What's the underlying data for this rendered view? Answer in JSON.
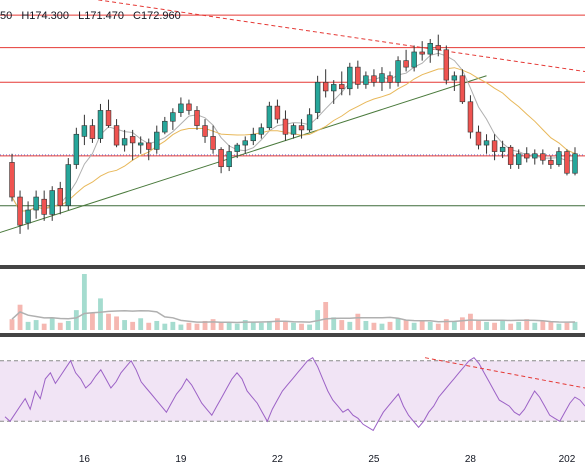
{
  "header": {
    "open_fragment": "50",
    "high": "H174.300",
    "low": "L171.470",
    "close": "C172.960"
  },
  "colors": {
    "up": "#26a69a",
    "down": "#ef5350",
    "horizontal_level": "#e53935",
    "trend_up": "#4a7a3c",
    "trend_down": "#e53935",
    "ma_fast": "#b0b0b0",
    "ma_slow": "#e8b85a",
    "rsi_line": "#9c62c6",
    "rsi_band": "#f1e4f5",
    "separator": "#444444",
    "volume_ma": "#b0b0b0"
  },
  "chart_data": [
    {
      "type": "candlestick",
      "x_labels": [
        {
          "i": 9,
          "label": "16"
        },
        {
          "i": 21,
          "label": "19"
        },
        {
          "i": 33,
          "label": "22"
        },
        {
          "i": 45,
          "label": "25"
        },
        {
          "i": 57,
          "label": "28"
        },
        {
          "i": 69,
          "label": "202"
        }
      ],
      "ylim": [
        165.6,
        177.7
      ],
      "horizontal_levels": [
        177.0,
        175.5,
        173.9,
        170.5,
        168.2
      ],
      "trend_lines": [
        {
          "role": "support",
          "from": [
            -2,
            166.9
          ],
          "to": [
            59,
            174.2
          ]
        },
        {
          "role": "resistance",
          "from": [
            9,
            177.8
          ],
          "to": [
            73,
            174.3
          ]
        }
      ],
      "candles": [
        [
          170.2,
          170.6,
          168.4,
          168.6
        ],
        [
          168.6,
          168.9,
          166.9,
          167.3
        ],
        [
          167.4,
          168.4,
          167.1,
          168.0
        ],
        [
          168.0,
          168.9,
          167.6,
          168.6
        ],
        [
          168.5,
          168.9,
          167.5,
          167.8
        ],
        [
          167.8,
          169.1,
          167.5,
          168.9
        ],
        [
          169.0,
          169.3,
          167.8,
          168.2
        ],
        [
          168.2,
          170.4,
          168.0,
          170.1
        ],
        [
          170.1,
          171.8,
          169.9,
          171.5
        ],
        [
          171.4,
          172.4,
          171.0,
          171.9
        ],
        [
          171.9,
          172.2,
          171.1,
          171.3
        ],
        [
          171.3,
          172.9,
          171.1,
          172.6
        ],
        [
          172.6,
          173.1,
          171.8,
          171.9
        ],
        [
          171.9,
          172.2,
          170.9,
          171.0
        ],
        [
          171.0,
          171.7,
          170.7,
          171.3
        ],
        [
          171.4,
          171.7,
          170.3,
          171.1
        ],
        [
          171.0,
          171.4,
          170.6,
          171.1
        ],
        [
          171.1,
          171.3,
          170.3,
          170.8
        ],
        [
          170.8,
          171.9,
          170.6,
          171.6
        ],
        [
          171.6,
          172.3,
          171.5,
          172.1
        ],
        [
          172.1,
          172.7,
          171.7,
          172.5
        ],
        [
          172.5,
          173.2,
          172.3,
          172.9
        ],
        [
          172.9,
          173.1,
          172.4,
          172.6
        ],
        [
          172.6,
          172.8,
          171.7,
          171.9
        ],
        [
          171.9,
          172.2,
          171.1,
          171.4
        ],
        [
          171.4,
          171.9,
          170.6,
          170.8
        ],
        [
          170.8,
          170.9,
          169.7,
          170.0
        ],
        [
          170.0,
          171.0,
          169.8,
          170.7
        ],
        [
          170.7,
          171.1,
          170.4,
          171.0
        ],
        [
          171.0,
          171.4,
          170.6,
          171.2
        ],
        [
          171.2,
          171.8,
          171.0,
          171.5
        ],
        [
          171.5,
          172.0,
          171.3,
          171.8
        ],
        [
          171.8,
          173.0,
          171.7,
          172.8
        ],
        [
          172.8,
          173.1,
          172.0,
          172.2
        ],
        [
          172.2,
          172.6,
          171.2,
          171.5
        ],
        [
          171.5,
          172.0,
          171.3,
          171.9
        ],
        [
          171.9,
          172.2,
          171.3,
          171.7
        ],
        [
          171.7,
          172.7,
          171.6,
          172.4
        ],
        [
          172.5,
          174.2,
          172.2,
          173.9
        ],
        [
          173.9,
          174.5,
          173.2,
          173.5
        ],
        [
          173.5,
          174.0,
          172.9,
          173.8
        ],
        [
          173.8,
          174.4,
          173.3,
          173.6
        ],
        [
          173.6,
          174.8,
          173.3,
          174.6
        ],
        [
          174.6,
          174.9,
          173.6,
          173.8
        ],
        [
          173.8,
          174.4,
          173.6,
          174.2
        ],
        [
          174.2,
          174.5,
          173.7,
          173.9
        ],
        [
          173.9,
          174.6,
          173.5,
          174.3
        ],
        [
          174.2,
          174.4,
          173.6,
          173.9
        ],
        [
          173.9,
          175.1,
          173.7,
          174.9
        ],
        [
          174.9,
          175.4,
          174.4,
          174.6
        ],
        [
          174.6,
          175.6,
          174.4,
          175.3
        ],
        [
          175.3,
          175.8,
          174.9,
          175.2
        ],
        [
          175.2,
          175.9,
          174.8,
          175.7
        ],
        [
          175.6,
          176.1,
          175.1,
          175.4
        ],
        [
          175.4,
          175.6,
          173.8,
          174.0
        ],
        [
          174.0,
          174.4,
          173.5,
          174.2
        ],
        [
          174.2,
          174.5,
          172.9,
          173.0
        ],
        [
          173.0,
          173.3,
          171.3,
          171.6
        ],
        [
          171.6,
          171.9,
          170.8,
          171.0
        ],
        [
          171.0,
          171.5,
          170.6,
          171.2
        ],
        [
          171.2,
          171.5,
          170.3,
          170.7
        ],
        [
          170.7,
          171.2,
          170.4,
          170.9
        ],
        [
          170.9,
          171.0,
          169.9,
          170.1
        ],
        [
          170.1,
          170.8,
          169.9,
          170.6
        ],
        [
          170.6,
          170.9,
          170.2,
          170.4
        ],
        [
          170.4,
          170.8,
          170.1,
          170.6
        ],
        [
          170.6,
          170.8,
          170.1,
          170.3
        ],
        [
          170.3,
          170.5,
          169.9,
          170.1
        ],
        [
          170.1,
          170.9,
          170.0,
          170.7
        ],
        [
          170.7,
          170.8,
          169.6,
          169.7
        ],
        [
          169.7,
          170.9,
          169.6,
          170.6
        ]
      ],
      "volume": [
        12,
        28,
        9,
        11,
        7,
        14,
        8,
        10,
        22,
        62,
        19,
        35,
        18,
        15,
        11,
        9,
        13,
        8,
        10,
        7,
        9,
        6,
        8,
        7,
        10,
        12,
        9,
        8,
        7,
        11,
        9,
        8,
        10,
        13,
        9,
        8,
        7,
        6,
        22,
        31,
        14,
        11,
        9,
        18,
        10,
        8,
        7,
        9,
        13,
        11,
        8,
        10,
        9,
        7,
        12,
        9,
        14,
        18,
        11,
        9,
        8,
        10,
        7,
        9,
        12,
        8,
        10,
        9,
        7,
        8,
        9
      ]
    },
    {
      "type": "line",
      "name": "RSI",
      "ylim": [
        15,
        85
      ],
      "band": [
        30,
        70
      ],
      "values": [
        33,
        30,
        35,
        40,
        45,
        38,
        50,
        45,
        58,
        62,
        55,
        60,
        65,
        70,
        62,
        58,
        52,
        55,
        60,
        64,
        58,
        52,
        56,
        62,
        66,
        70,
        64,
        56,
        52,
        48,
        44,
        40,
        36,
        42,
        48,
        52,
        58,
        54,
        48,
        42,
        38,
        34,
        40,
        46,
        52,
        58,
        62,
        58,
        50,
        46,
        42,
        36,
        30,
        38,
        44,
        50,
        54,
        58,
        62,
        66,
        70,
        72,
        66,
        58,
        50,
        44,
        40,
        36,
        38,
        34,
        32,
        28,
        26,
        24,
        30,
        36,
        40,
        44,
        48,
        40,
        34,
        30,
        26,
        30,
        36,
        40,
        46,
        50,
        54,
        58,
        62,
        66,
        70,
        72,
        68,
        62,
        56,
        50,
        44,
        42,
        40,
        36,
        34,
        38,
        44,
        50,
        46,
        40,
        34,
        32,
        30,
        36,
        42,
        46,
        44,
        40
      ]
    }
  ]
}
